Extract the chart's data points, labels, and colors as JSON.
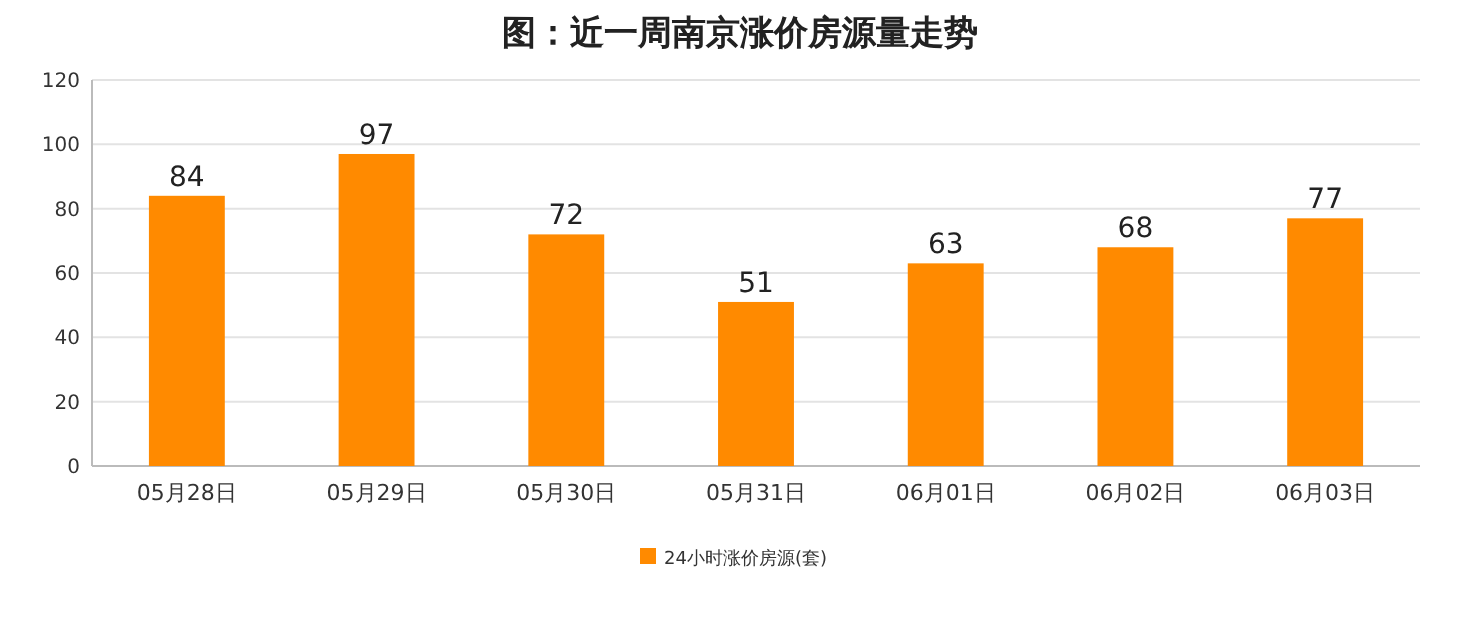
{
  "chart_data": {
    "type": "bar",
    "title": "图：近一周南京涨价房源量走势",
    "categories": [
      "05月28日",
      "05月29日",
      "05月30日",
      "05月31日",
      "06月01日",
      "06月02日",
      "06月03日"
    ],
    "series": [
      {
        "name": "24小时涨价房源(套)",
        "color": "#ff8a00",
        "values": [
          84,
          97,
          72,
          51,
          63,
          68,
          77
        ]
      }
    ],
    "ylim": [
      0,
      120
    ],
    "yticks": [
      0,
      20,
      40,
      60,
      80,
      100,
      120
    ],
    "grid": "y",
    "legend": "bottom",
    "data_labels": true
  }
}
